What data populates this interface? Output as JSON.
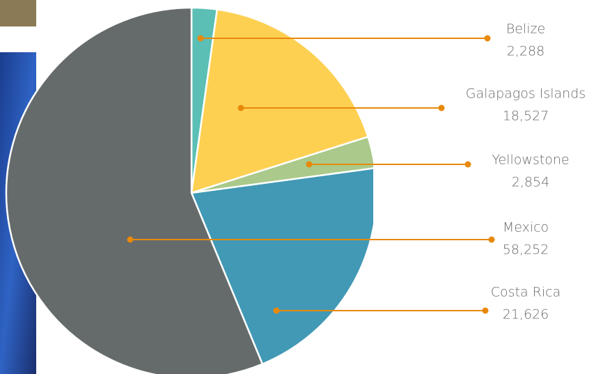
{
  "chart_data": {
    "type": "pie",
    "categories": [
      "Belize",
      "Galapagos Islands",
      "Yellowstone",
      "Costa Rica",
      "Mexico"
    ],
    "values": [
      2288,
      18527,
      2854,
      21626,
      58252
    ],
    "value_labels": [
      "2,288",
      "18,527",
      "2,854",
      "21,626",
      "58,252"
    ],
    "colors": [
      "#5bbfb5",
      "#fdd052",
      "#aac98a",
      "#4199b5",
      "#656b6b"
    ],
    "leader_color": "#e8890c"
  }
}
